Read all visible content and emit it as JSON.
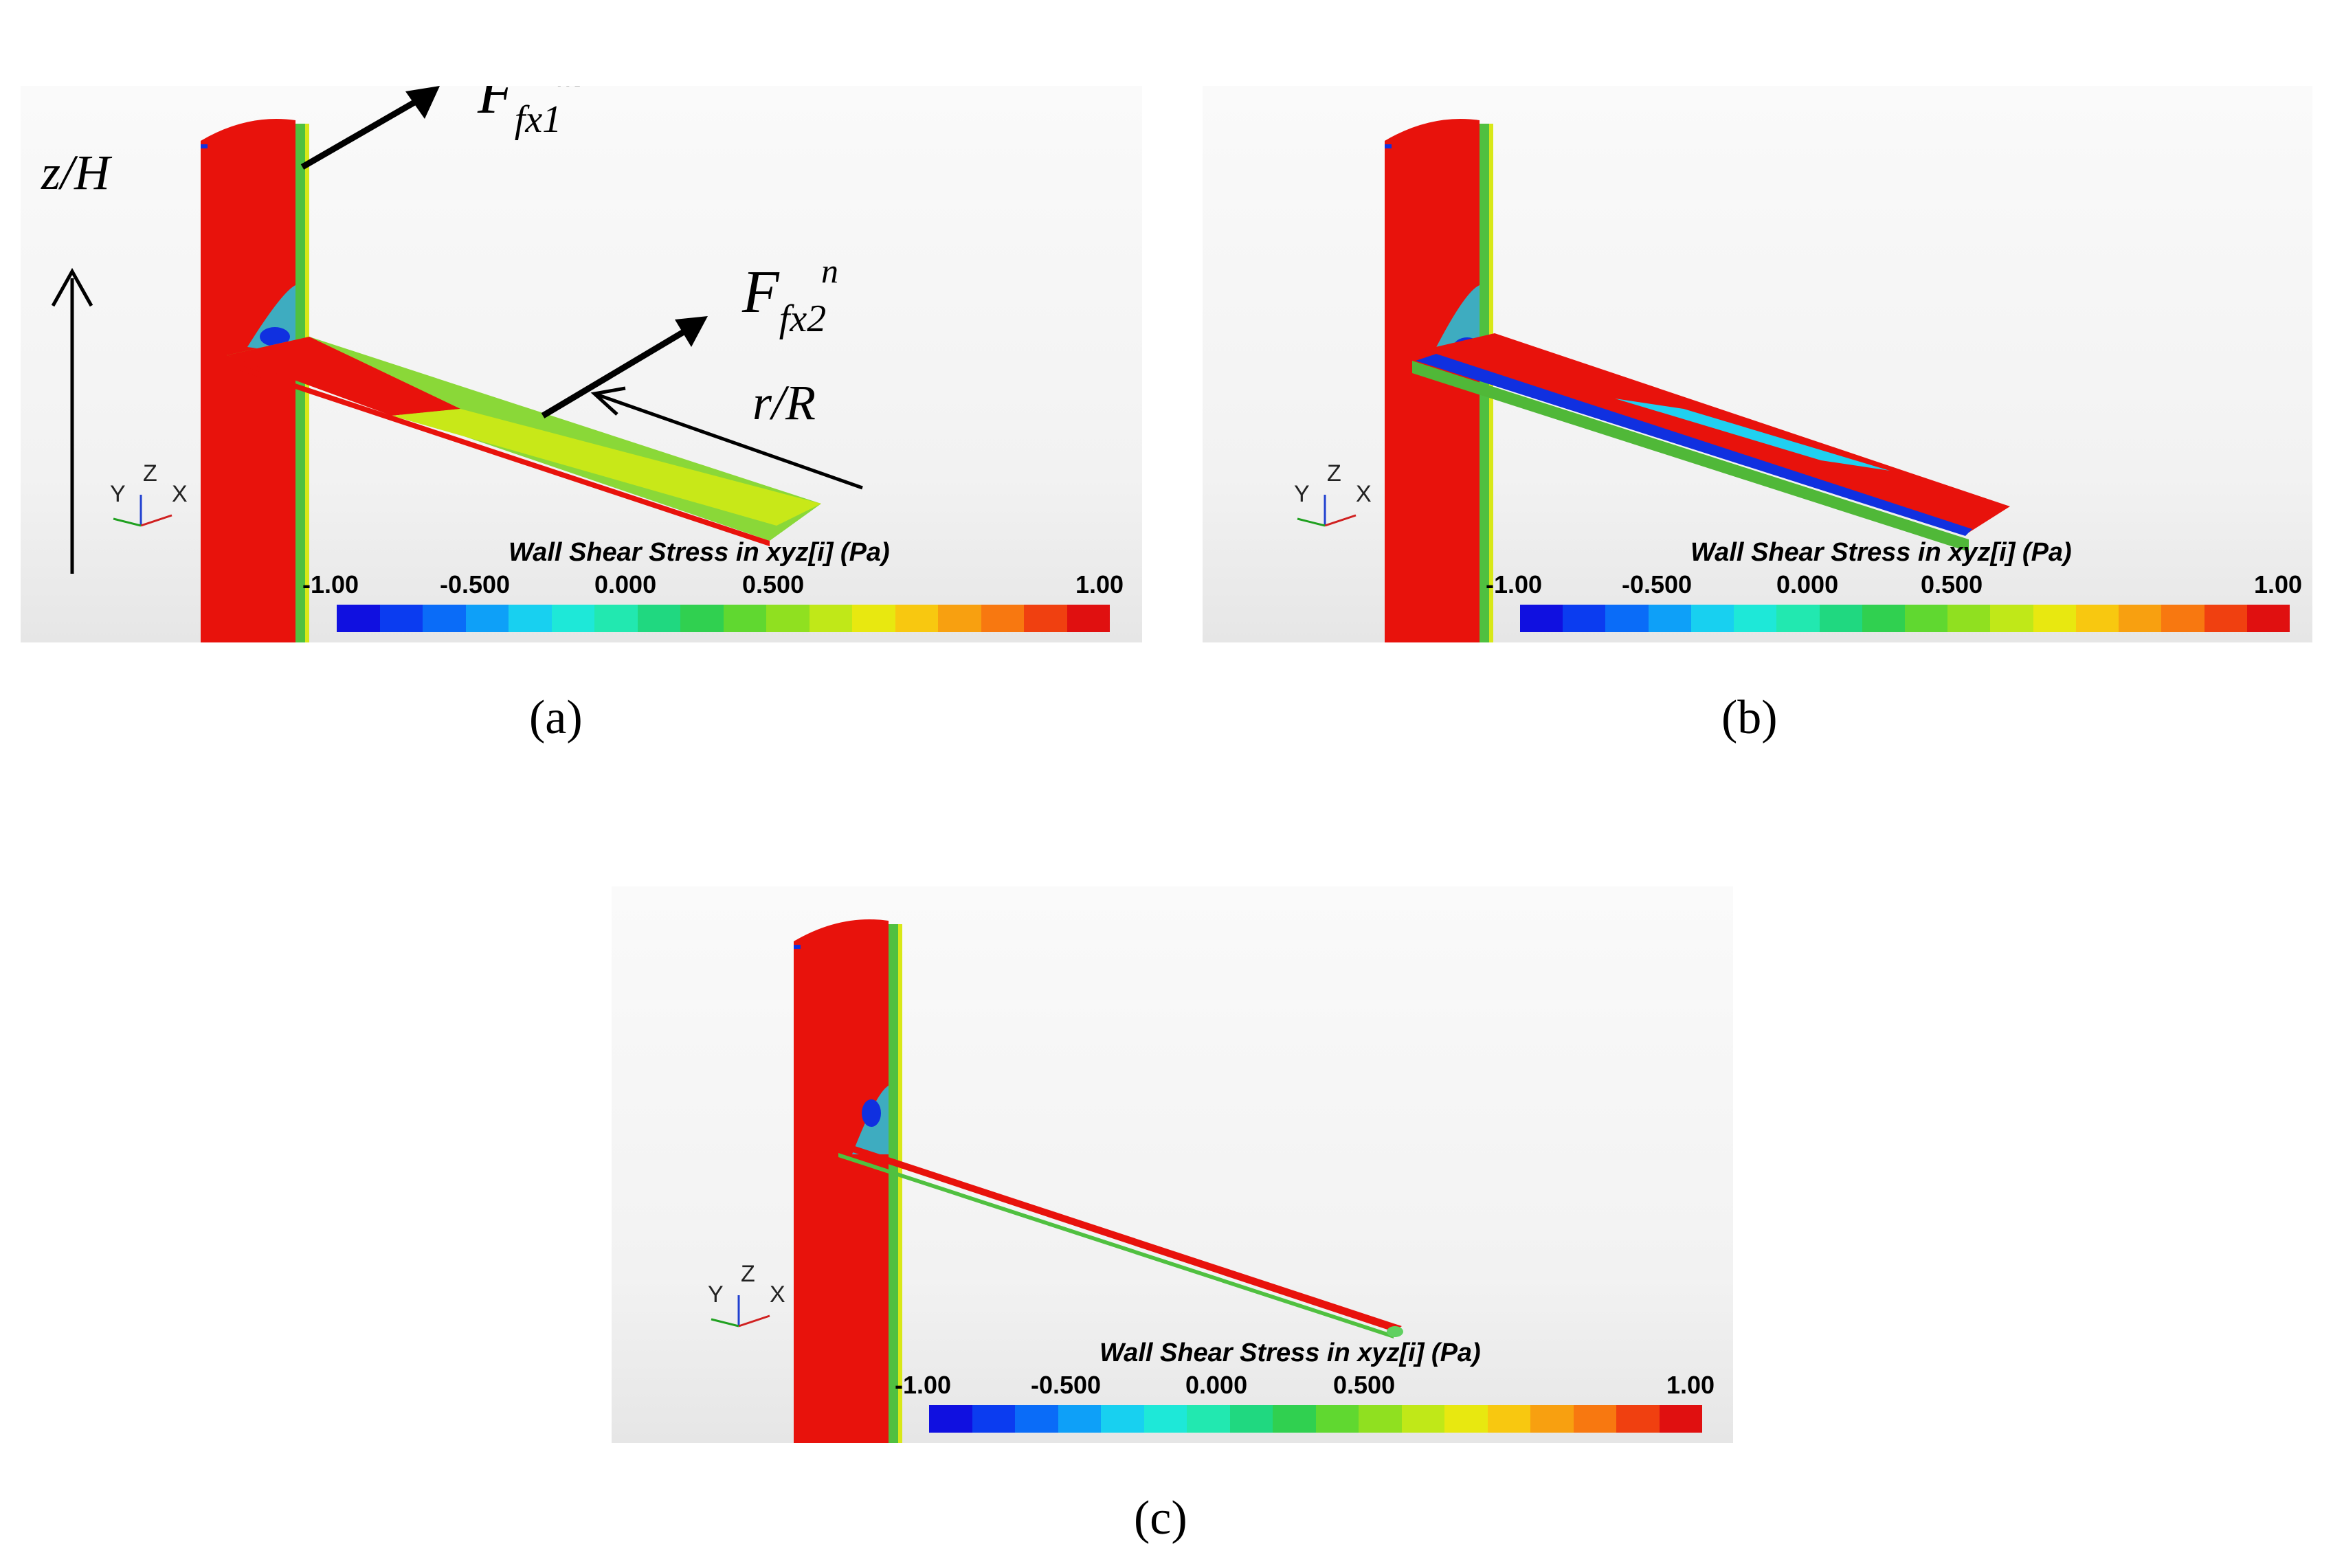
{
  "panels": [
    {
      "id": "a",
      "caption": "(a)",
      "scale_title": "Wall Shear Stress in xyz[i] (Pa)",
      "ticks": [
        "-1.00",
        "-0.500",
        "0.000",
        "0.500",
        "1.00"
      ],
      "axes": [
        "Y",
        "Z",
        "X"
      ]
    },
    {
      "id": "b",
      "caption": "(b)",
      "scale_title": "Wall Shear Stress in xyz[i] (Pa)",
      "ticks": [
        "-1.00",
        "-0.500",
        "0.000",
        "0.500",
        "1.00"
      ],
      "axes": [
        "Y",
        "Z",
        "X"
      ]
    },
    {
      "id": "c",
      "caption": "(c)",
      "scale_title": "Wall Shear Stress in xyz[i] (Pa)",
      "ticks": [
        "-1.00",
        "-0.500",
        "0.000",
        "0.500",
        "1.00"
      ],
      "axes": [
        "Y",
        "Z",
        "X"
      ]
    }
  ],
  "annotations": {
    "force_1": {
      "base": "F",
      "sub": "fx1",
      "sup": "m"
    },
    "force_2": {
      "base": "F",
      "sub": "fx2",
      "sup": "n"
    },
    "tower_axis": "z/H",
    "blade_axis": "r/R"
  },
  "colormap": [
    "#1010e0",
    "#0b3cf0",
    "#0a6cf8",
    "#0ea0f8",
    "#18d0f0",
    "#1ee8d8",
    "#22e8b0",
    "#20d880",
    "#30d050",
    "#60d830",
    "#90e020",
    "#c0e818",
    "#e8e810",
    "#f8c810",
    "#f8a010",
    "#f87810",
    "#f04010",
    "#e01010"
  ],
  "colors": {
    "red": "#e8120c",
    "green": "#50c040",
    "blue": "#1030e0",
    "yellow": "#d8e818"
  }
}
